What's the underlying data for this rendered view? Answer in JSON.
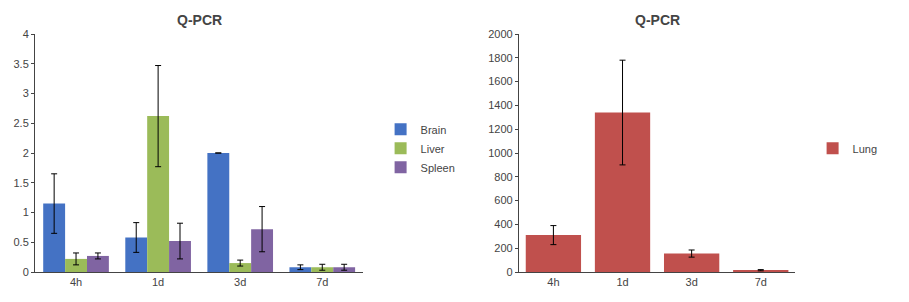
{
  "chart_data": [
    {
      "type": "bar",
      "title": "Q-PCR",
      "categories": [
        "4h",
        "1d",
        "3d",
        "7d"
      ],
      "series": [
        {
          "name": "Brain",
          "color": "#4472C4",
          "values": [
            1.15,
            0.58,
            2.0,
            0.08
          ],
          "errors": [
            0.5,
            0.25,
            0.0,
            0.04
          ]
        },
        {
          "name": "Liver",
          "color": "#9BBB59",
          "values": [
            0.22,
            2.62,
            0.15,
            0.08
          ],
          "errors": [
            0.1,
            0.85,
            0.05,
            0.05
          ]
        },
        {
          "name": "Spleen",
          "color": "#8064A2",
          "values": [
            0.27,
            0.52,
            0.72,
            0.08
          ],
          "errors": [
            0.05,
            0.3,
            0.38,
            0.05
          ]
        }
      ],
      "ylim": [
        0,
        4
      ],
      "yticks": [
        0,
        0.5,
        1,
        1.5,
        2,
        2.5,
        3,
        3.5,
        4
      ],
      "grid": false
    },
    {
      "type": "bar",
      "title": "Q-PCR",
      "categories": [
        "4h",
        "1d",
        "3d",
        "7d"
      ],
      "series": [
        {
          "name": "Lung",
          "color": "#C0504D",
          "values": [
            310,
            1340,
            155,
            15
          ],
          "errors": [
            80,
            440,
            30,
            5
          ]
        }
      ],
      "ylim": [
        0,
        2000
      ],
      "yticks": [
        0,
        200,
        400,
        600,
        800,
        1000,
        1200,
        1400,
        1600,
        1800,
        2000
      ],
      "grid": false
    }
  ]
}
